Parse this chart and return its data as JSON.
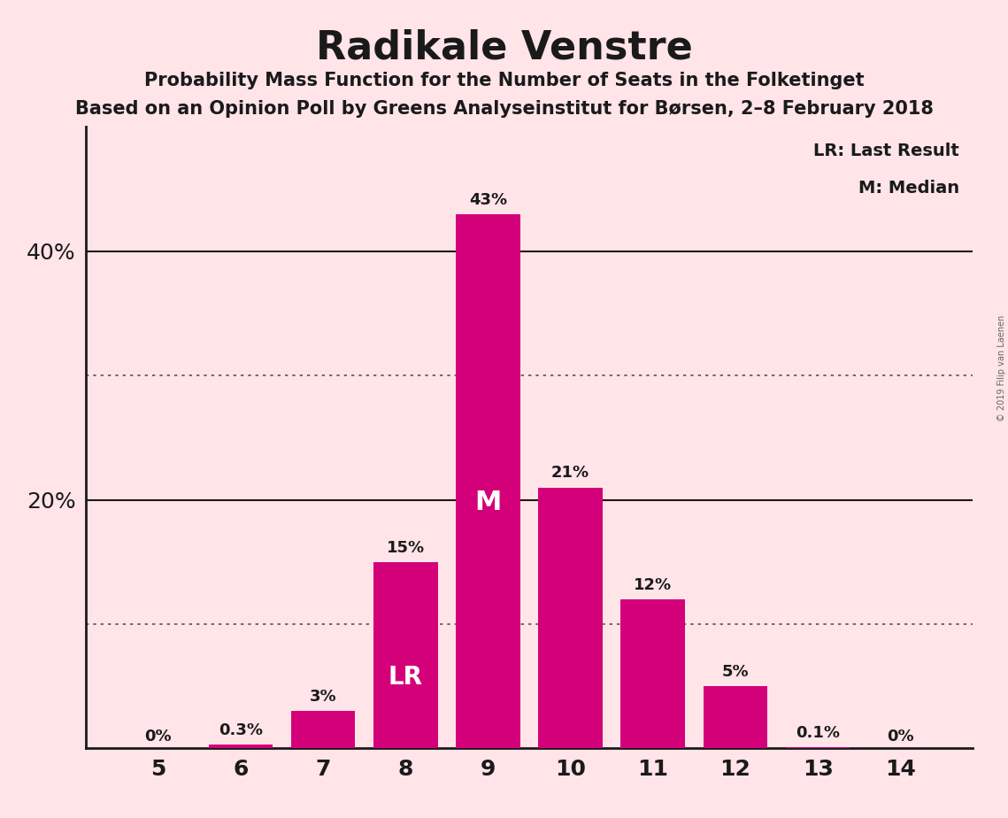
{
  "title": "Radikale Venstre",
  "subtitle1": "Probability Mass Function for the Number of Seats in the Folketinget",
  "subtitle2": "Based on an Opinion Poll by Greens Analyseinstitut for Børsen, 2–8 February 2018",
  "copyright": "© 2019 Filip van Laenen",
  "categories": [
    5,
    6,
    7,
    8,
    9,
    10,
    11,
    12,
    13,
    14
  ],
  "values": [
    0.0,
    0.3,
    3.0,
    15.0,
    43.0,
    21.0,
    12.0,
    5.0,
    0.1,
    0.0
  ],
  "labels": [
    "0%",
    "0.3%",
    "3%",
    "15%",
    "43%",
    "21%",
    "12%",
    "5%",
    "0.1%",
    "0%"
  ],
  "bar_color": "#D4007A",
  "background_color": "#FFE4E8",
  "text_color": "#1a1a1a",
  "ytick_labels": [
    "20%",
    "40%"
  ],
  "ytick_values": [
    20,
    40
  ],
  "ylim": [
    0,
    50
  ],
  "lr_bar": 8,
  "median_bar": 9,
  "lr_label": "LR: Last Result",
  "median_label": "M: Median",
  "dotted_lines": [
    10.0,
    30.0
  ],
  "solid_lines": [
    20.0,
    40.0
  ]
}
